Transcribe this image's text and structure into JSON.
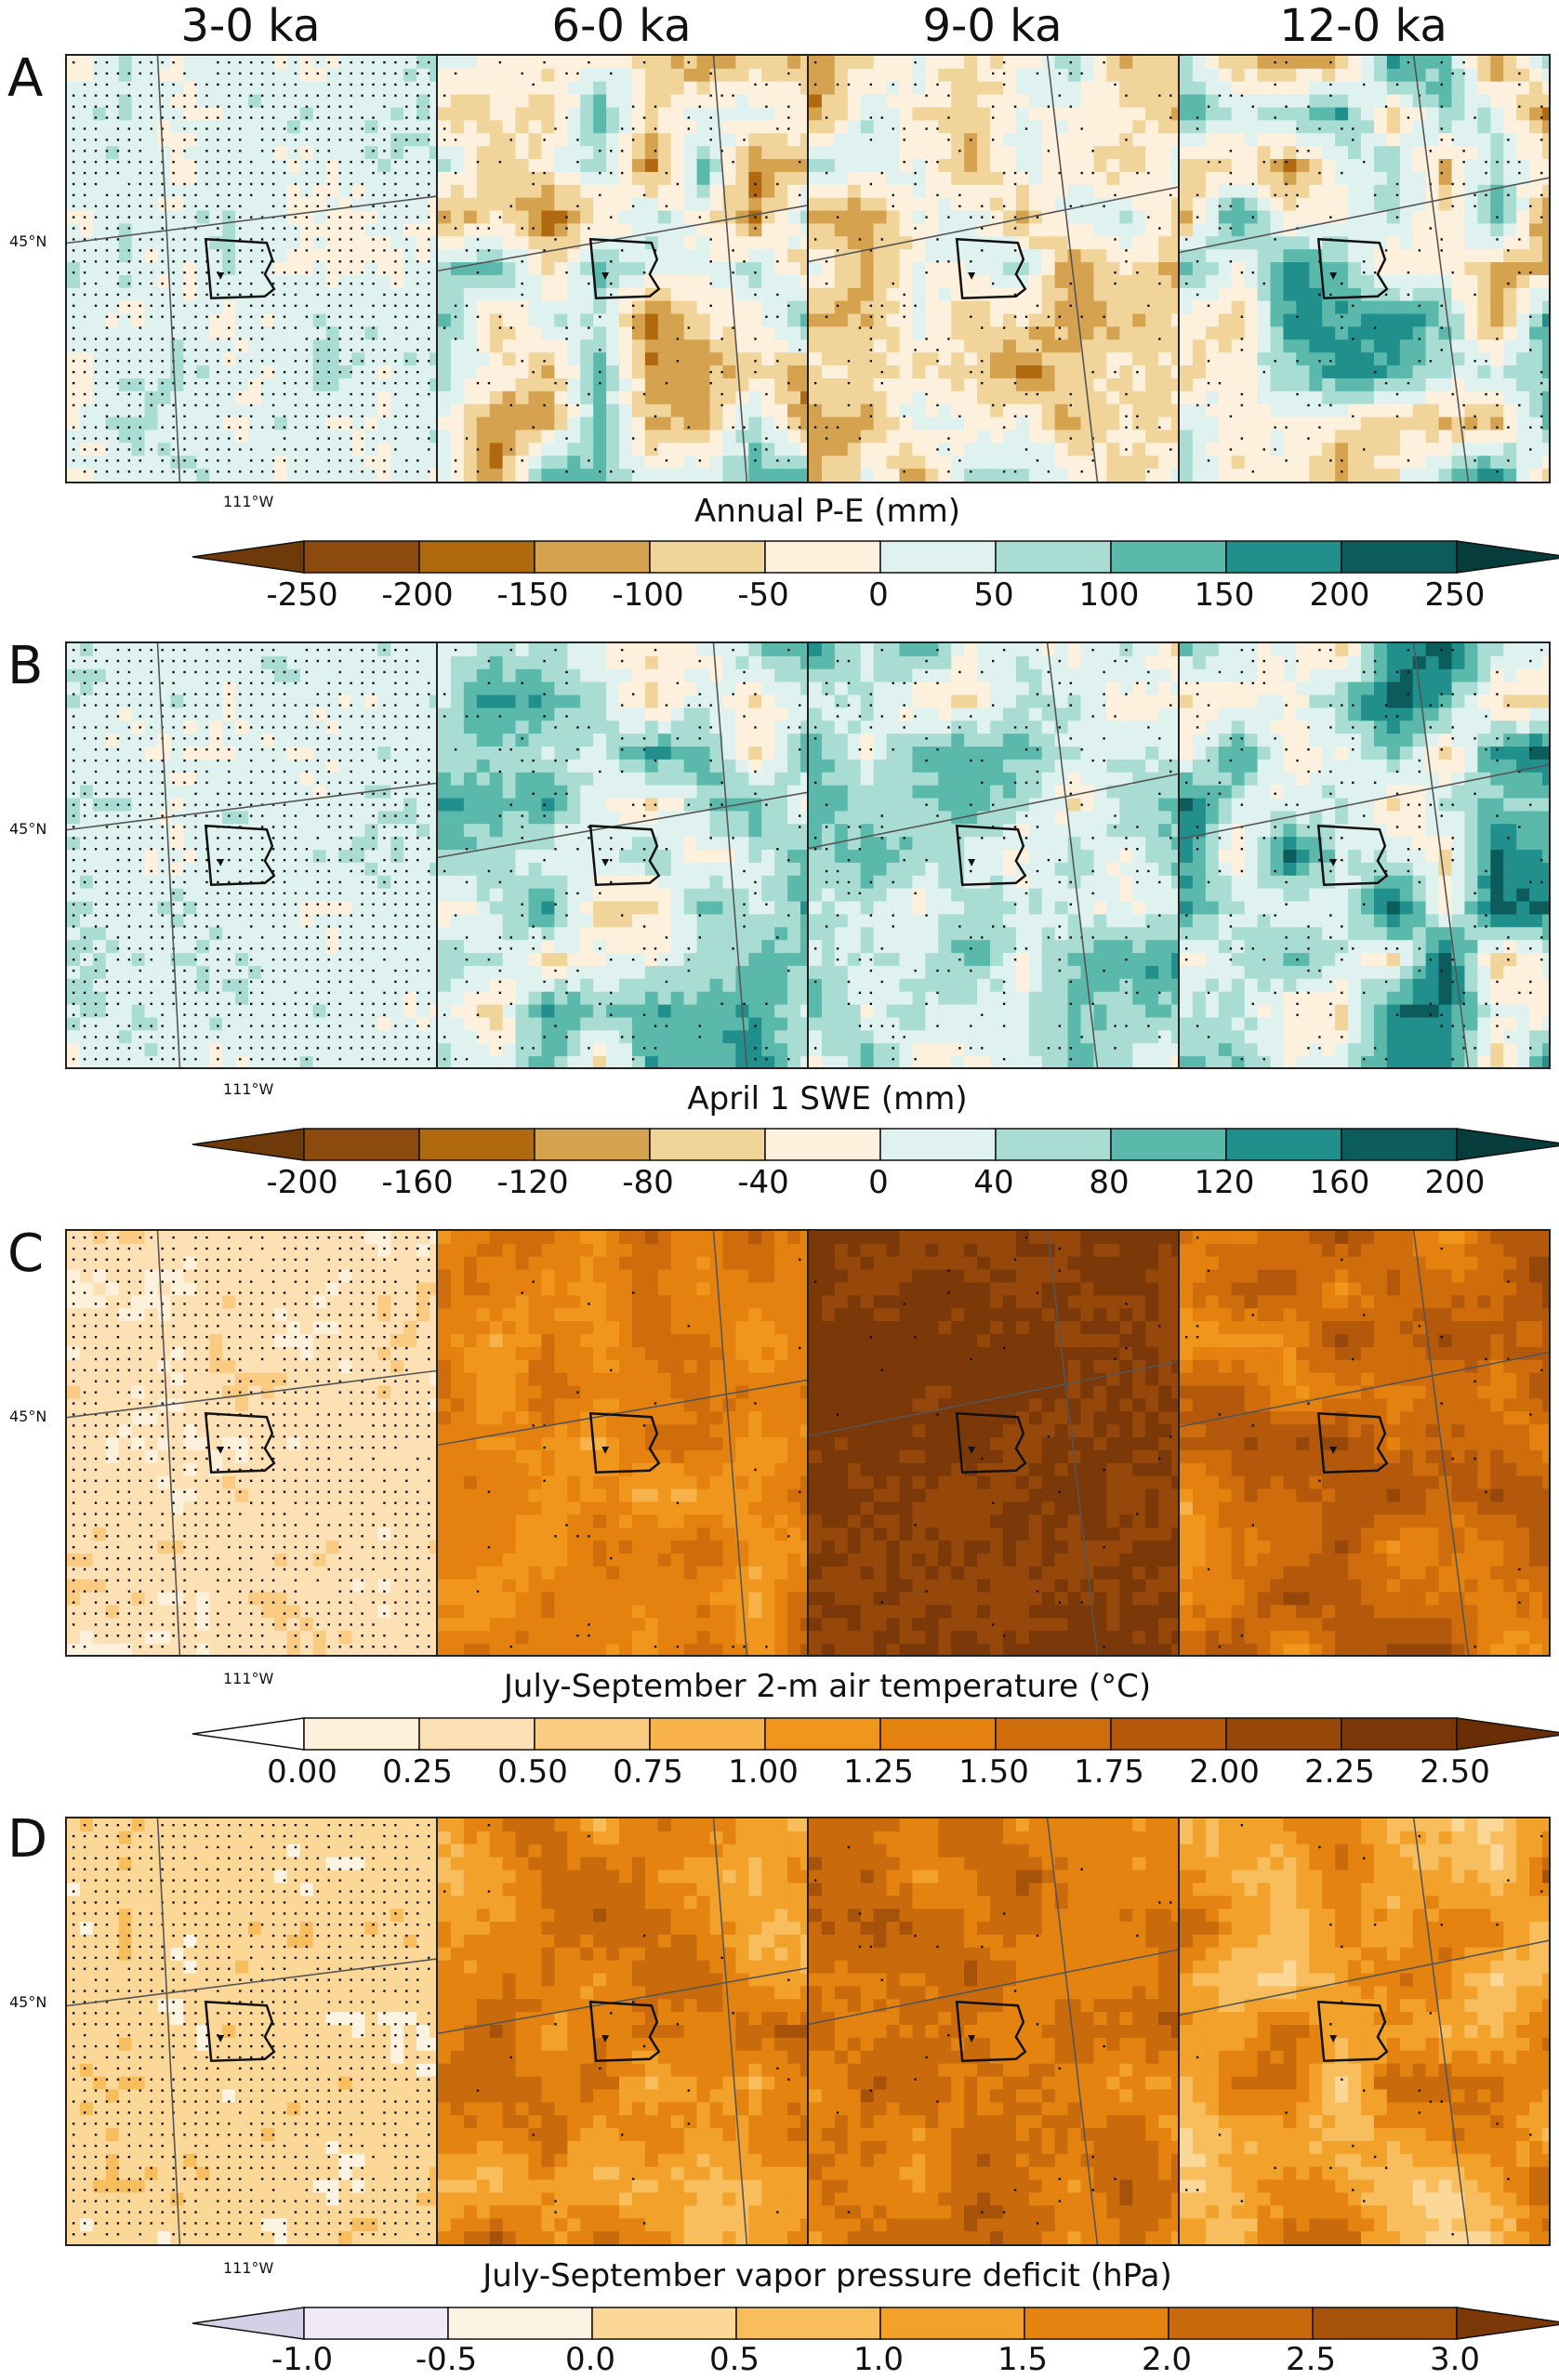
{
  "periods": [
    "3-0 ka",
    "6-0 ka",
    "9-0 ka",
    "12-0 ka"
  ],
  "lat_label": "45°N",
  "lon_label": "111°W",
  "rows": [
    {
      "letter": "A",
      "title": "Annual P-E (mm)",
      "ticks": [
        "-250",
        "-200",
        "-150",
        "-100",
        "-50",
        "0",
        "50",
        "100",
        "150",
        "200",
        "250"
      ],
      "colors": [
        "#8c4a0e",
        "#b0690f",
        "#d5a24f",
        "#f0d49a",
        "#fdf0dc",
        "#e0f2ef",
        "#a9ddd3",
        "#5bb9ac",
        "#218f8c",
        "#0b5c5a"
      ],
      "extend_low": "#6e3a0a",
      "extend_high": "#063c3c"
    },
    {
      "letter": "B",
      "title": "April 1 SWE (mm)",
      "ticks": [
        "-200",
        "-160",
        "-120",
        "-80",
        "-40",
        "0",
        "40",
        "80",
        "120",
        "160",
        "200"
      ],
      "colors": [
        "#8c4a0e",
        "#b0690f",
        "#d5a24f",
        "#f0d49a",
        "#fdf0dc",
        "#e0f2ef",
        "#a9ddd3",
        "#5bb9ac",
        "#218f8c",
        "#0b5c5a"
      ],
      "extend_low": "#6e3a0a",
      "extend_high": "#063c3c"
    },
    {
      "letter": "C",
      "title": "July-September 2-m air temperature (°C)",
      "ticks": [
        "0.00",
        "0.25",
        "0.50",
        "0.75",
        "1.00",
        "1.25",
        "1.50",
        "1.75",
        "2.00",
        "2.25",
        "2.50"
      ],
      "colors": [
        "#fef1dc",
        "#fde0b4",
        "#fbcb82",
        "#f7b24a",
        "#f0961c",
        "#e5820f",
        "#cf6d0c",
        "#b4590b",
        "#96470a",
        "#7b3808"
      ],
      "extend_low": "#ffffff",
      "extend_high": "#6a2e06"
    },
    {
      "letter": "D",
      "title": "July-September vapor pressure deficit (hPa)",
      "ticks": [
        "-1.0",
        "-0.5",
        "0.0",
        "0.5",
        "1.0",
        "1.5",
        "2.0",
        "2.5",
        "3.0"
      ],
      "colors": [
        "#efeaf6",
        "#fdf3e3",
        "#fbd898",
        "#f8bd5c",
        "#f2a12a",
        "#e4830f",
        "#c96a0c",
        "#a6520a"
      ],
      "extend_low": "#d6d0e6",
      "extend_high": "#7b3808"
    }
  ]
}
